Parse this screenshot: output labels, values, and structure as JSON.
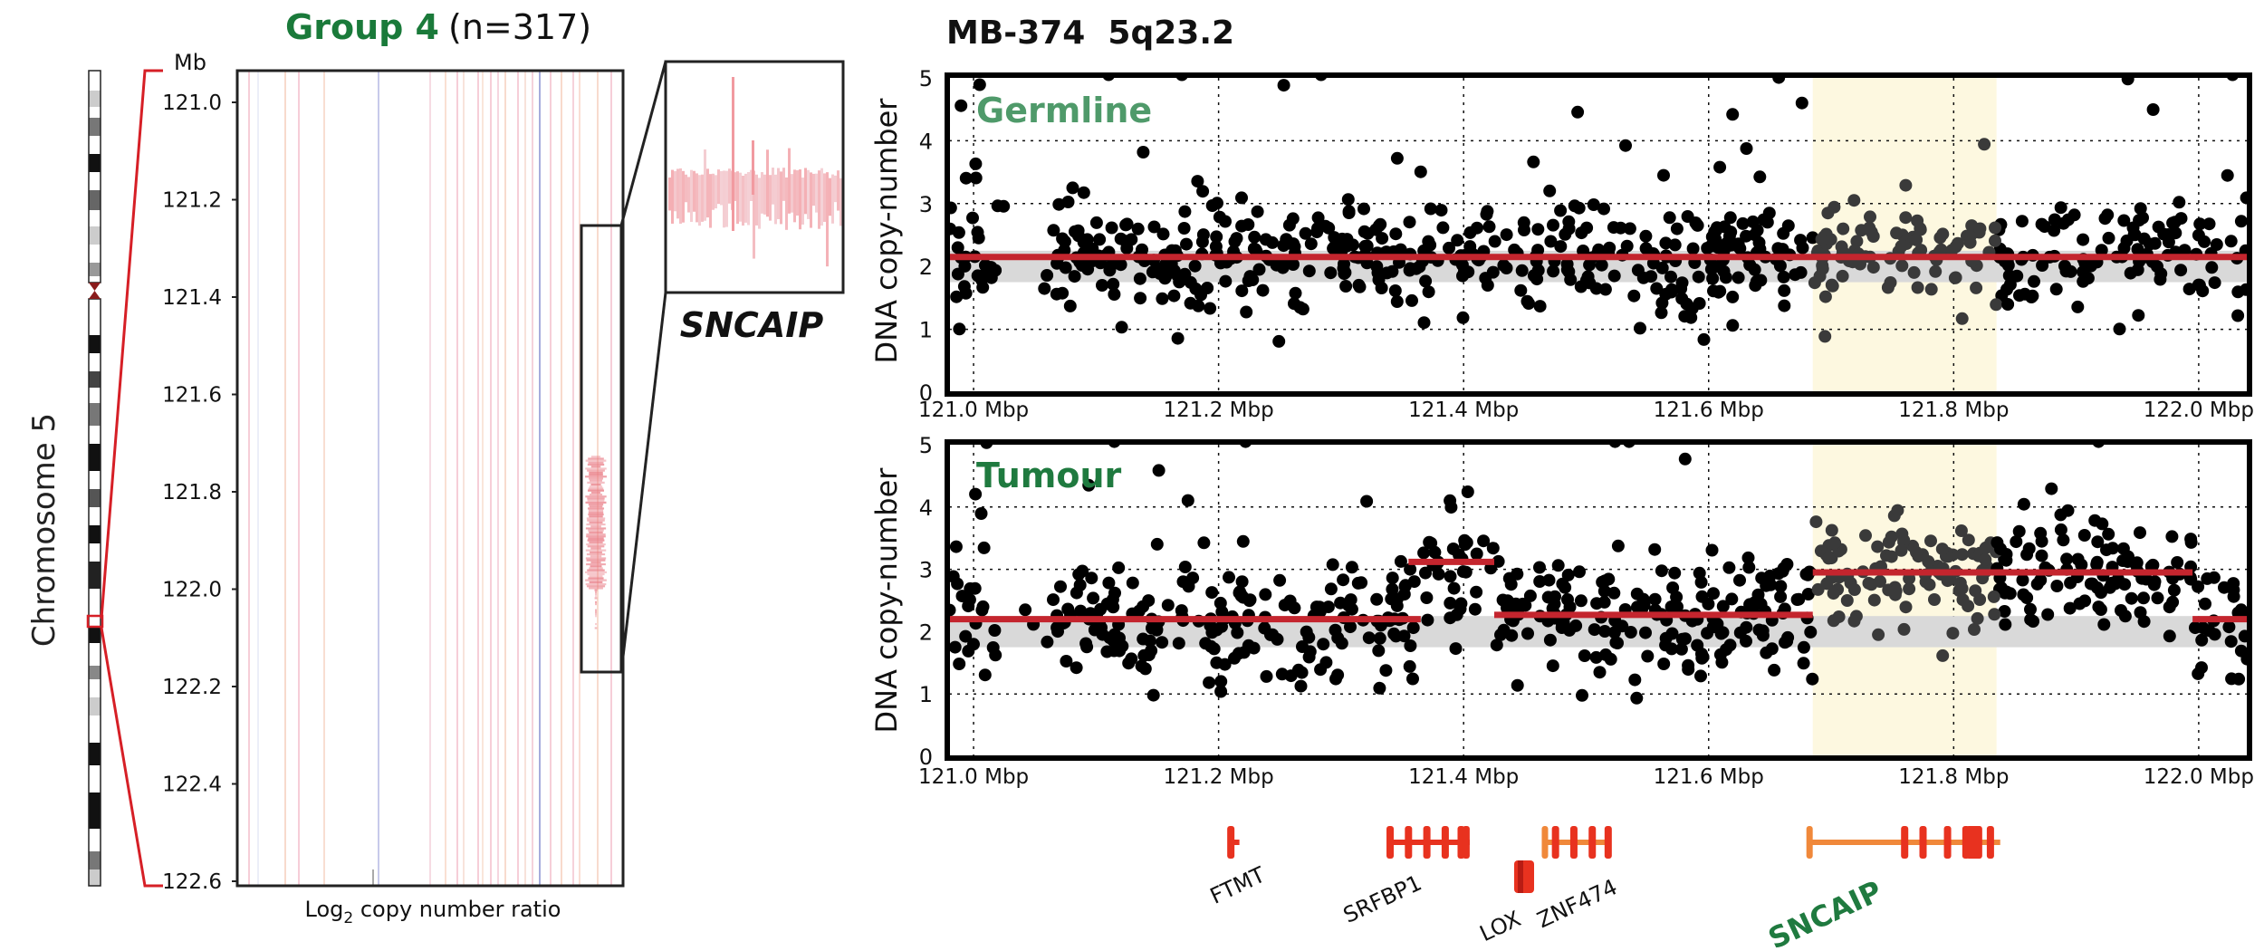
{
  "left_panel": {
    "group_title": "Group 4",
    "group_n": "(n=317)",
    "chromosome_label": "Chromosome 5",
    "mb_label": "Mb",
    "y_ticks": [
      "121.0",
      "121.2",
      "121.4",
      "121.6",
      "121.8",
      "122.0",
      "122.2",
      "122.4",
      "122.6"
    ],
    "xlabel_log": "Log",
    "xlabel_sub": "2",
    "xlabel_rest": " copy number ratio",
    "zoom_gene": "SNCAIP"
  },
  "right_panel": {
    "title": "MB-374  5q23.2",
    "germline_label": "Germline",
    "tumour_label": "Tumour",
    "ylabel": "DNA copy-number"
  },
  "colors": {
    "group_title": "#1a7a3a",
    "germline": "#4f9a6a",
    "tumour": "#1f7a3f",
    "segment": "#c4252e",
    "highlight": "#fdf8e0",
    "gene_red": "#e8321f",
    "gene_orange": "#f0883a"
  },
  "chart_data": [
    {
      "type": "heatmap",
      "name": "Group 4 (n=317)",
      "ylabel": "Mb",
      "xlabel": "Log2 copy number ratio",
      "ylim": [
        121.0,
        122.6
      ],
      "yticks": [
        121.0,
        121.2,
        121.4,
        121.6,
        121.8,
        122.0,
        122.2,
        122.4,
        122.6
      ],
      "highlight_region": [
        121.7,
        122.1
      ]
    },
    {
      "type": "scatter",
      "panel": "Germline",
      "ylabel": "DNA copy-number",
      "ylim": [
        0,
        5
      ],
      "yticks": [
        0,
        1,
        2,
        3,
        4,
        5
      ],
      "xlim": [
        120.98,
        122.04
      ],
      "xticks": [
        "121.0 Mbp",
        "121.2 Mbp",
        "121.4 Mbp",
        "121.6 Mbp",
        "121.8 Mbp",
        "122.0 Mbp"
      ],
      "xtick_values": [
        121.0,
        121.2,
        121.4,
        121.6,
        121.8,
        122.0
      ],
      "highlight_region": [
        121.685,
        121.835
      ],
      "segments": [
        {
          "x0": 120.98,
          "x1": 122.04,
          "y": 2.15
        }
      ],
      "grid": true
    },
    {
      "type": "scatter",
      "panel": "Tumour",
      "ylabel": "DNA copy-number",
      "ylim": [
        0,
        5
      ],
      "yticks": [
        0,
        1,
        2,
        3,
        4,
        5
      ],
      "xlim": [
        120.98,
        122.04
      ],
      "xticks": [
        "121.0 Mbp",
        "121.2 Mbp",
        "121.4 Mbp",
        "121.6 Mbp",
        "121.8 Mbp",
        "122.0 Mbp"
      ],
      "xtick_values": [
        121.0,
        121.2,
        121.4,
        121.6,
        121.8,
        122.0
      ],
      "highlight_region": [
        121.685,
        121.835
      ],
      "segments": [
        {
          "x0": 120.98,
          "x1": 121.365,
          "y": 2.2
        },
        {
          "x0": 121.355,
          "x1": 121.425,
          "y": 3.12
        },
        {
          "x0": 121.425,
          "x1": 121.685,
          "y": 2.27
        },
        {
          "x0": 121.685,
          "x1": 121.995,
          "y": 2.95
        },
        {
          "x0": 121.995,
          "x1": 122.04,
          "y": 2.2
        }
      ],
      "grid": true
    }
  ],
  "genes": [
    {
      "name": "FTMT",
      "start": 121.21,
      "end": 121.217,
      "color": "#e8321f",
      "bold": false
    },
    {
      "name": "SRFBP1",
      "start": 121.34,
      "end": 121.405,
      "color": "#e8321f",
      "bold": false
    },
    {
      "name": "LOX",
      "start": 121.4,
      "end": 121.418,
      "color": "#e8321f",
      "bold": false
    },
    {
      "name": "ZNF474",
      "start": 121.465,
      "end": 121.52,
      "color": "#f0883a",
      "bold": false
    },
    {
      "name": "SNCAIP",
      "start": 121.683,
      "end": 121.838,
      "color": "#f0883a",
      "bold": true
    }
  ]
}
